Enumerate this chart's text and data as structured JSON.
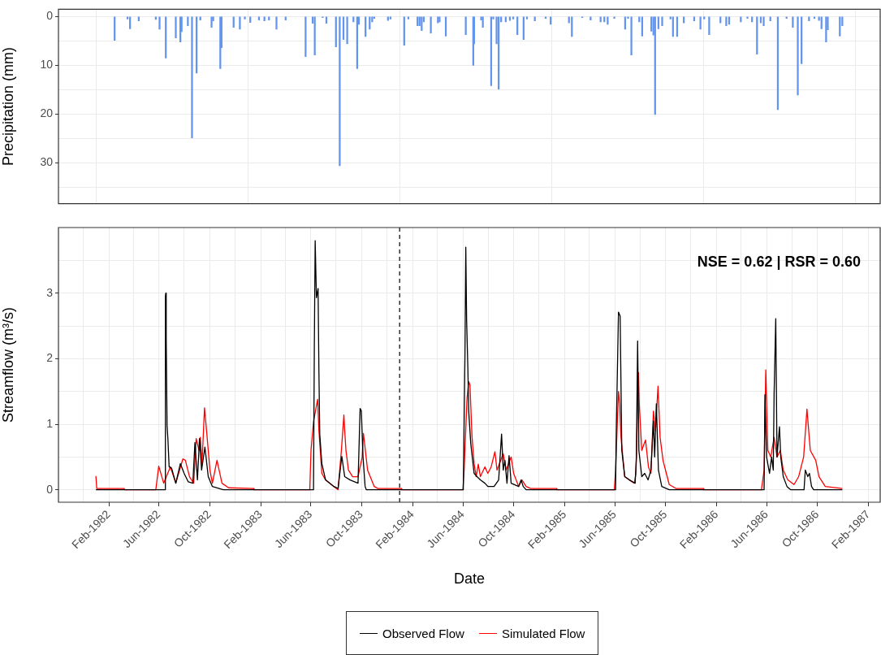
{
  "chart_data": [
    {
      "type": "bar",
      "ylabel": "Precipitation (mm)",
      "color": "#6495ed",
      "grid": true,
      "tick_labels": "y",
      "x": [
        "1982-02-15",
        "1982-03-18",
        "1982-03-24",
        "1982-04-14",
        "1982-05-25",
        "1982-06-03",
        "1982-06-18",
        "1982-07-12",
        "1982-07-23",
        "1982-07-26",
        "1982-08-10",
        "1982-08-20",
        "1982-08-31",
        "1982-09-09",
        "1982-10-06",
        "1982-10-10",
        "1982-10-27",
        "1982-10-30",
        "1982-11-28",
        "1982-12-13",
        "1982-12-25",
        "1983-01-07",
        "1983-01-28",
        "1983-02-10",
        "1983-02-21",
        "1983-03-11",
        "1983-04-02",
        "1983-05-20",
        "1983-06-06",
        "1983-06-11",
        "1983-06-30",
        "1983-07-09",
        "1983-08-01",
        "1983-08-10",
        "1983-08-19",
        "1983-08-28",
        "1983-09-12",
        "1983-09-21",
        "1983-09-25",
        "1983-10-11",
        "1983-10-21",
        "1983-10-27",
        "1983-11-01",
        "1983-12-04",
        "1983-12-10",
        "1984-01-12",
        "1984-01-22",
        "1984-02-13",
        "1984-02-18",
        "1984-02-23",
        "1984-02-28",
        "1984-03-16",
        "1984-04-02",
        "1984-04-06",
        "1984-04-21",
        "1984-06-08",
        "1984-06-26",
        "1984-06-28",
        "1984-07-15",
        "1984-07-19",
        "1984-08-08",
        "1984-08-13",
        "1984-08-21",
        "1984-08-26",
        "1984-09-01",
        "1984-09-12",
        "1984-09-22",
        "1984-09-30",
        "1984-10-10",
        "1984-10-25",
        "1984-11-02",
        "1984-11-21",
        "1984-12-17",
        "1984-12-29",
        "1985-02-11",
        "1985-02-18",
        "1985-03-15",
        "1985-04-04",
        "1985-04-28",
        "1985-05-07",
        "1985-05-15",
        "1985-05-31",
        "1985-06-26",
        "1985-07-03",
        "1985-07-11",
        "1985-07-30",
        "1985-08-06",
        "1985-08-28",
        "1985-09-02",
        "1985-09-06",
        "1985-09-14",
        "1985-09-23",
        "1985-10-13",
        "1985-10-19",
        "1985-10-29",
        "1985-11-14",
        "1985-12-09",
        "1985-12-24",
        "1986-01-02",
        "1986-01-14",
        "1986-02-10",
        "1986-02-24",
        "1986-03-03",
        "1986-03-31",
        "1986-04-16",
        "1986-04-27",
        "1986-05-09",
        "1986-05-18",
        "1986-05-25",
        "1986-06-10",
        "1986-06-28",
        "1986-07-19",
        "1986-08-03",
        "1986-08-15",
        "1986-08-24",
        "1986-09-11",
        "1986-09-24",
        "1986-10-05",
        "1986-10-11",
        "1986-10-22",
        "1986-10-26",
        "1986-11-24",
        "1986-11-30"
      ],
      "values": [
        4.9,
        0.5,
        2.5,
        0.9,
        0.6,
        2.6,
        8.5,
        4.4,
        5.2,
        3.1,
        1.9,
        24.9,
        11.6,
        0.7,
        2.2,
        0.9,
        10.7,
        6.4,
        2.2,
        2.6,
        0.5,
        1.2,
        0.7,
        0.9,
        0.7,
        2.6,
        0.7,
        8.2,
        1.4,
        7.9,
        0.2,
        1.4,
        6.2,
        30.6,
        4.7,
        5.6,
        1.1,
        10.7,
        1.6,
        4.1,
        2.6,
        1.1,
        0.4,
        0.8,
        0.5,
        5.9,
        0.5,
        1.9,
        1.9,
        2.9,
        1.1,
        3.4,
        1.3,
        1.1,
        4.0,
        3.7,
        10.0,
        5.6,
        0.7,
        2.2,
        14.2,
        0.5,
        5.6,
        14.9,
        1.1,
        1.1,
        0.8,
        0.5,
        3.7,
        4.7,
        0.5,
        0.9,
        0.4,
        1.6,
        1.3,
        4.1,
        0.2,
        0.7,
        1.1,
        1.1,
        1.6,
        0.4,
        2.6,
        0.4,
        7.9,
        1.1,
        4.0,
        3.0,
        3.8,
        20.1,
        2.5,
        1.9,
        0.5,
        4.1,
        4.1,
        1.3,
        0.9,
        2.6,
        0.5,
        3.7,
        1.3,
        1.9,
        1.6,
        1.1,
        0.4,
        1.1,
        7.7,
        1.3,
        1.9,
        0.9,
        19.1,
        0.4,
        2.2,
        16.1,
        9.7,
        0.9,
        0.4,
        0.8,
        2.5,
        5.2,
        2.7,
        4.0,
        1.9
      ],
      "xlim": [
        "1981-10-03",
        "1987-03-01"
      ],
      "xticks": [
        {
          "value": "1982-01-01",
          "label": null
        },
        {
          "value": "1983-01-01",
          "label": null
        },
        {
          "value": "1984-01-01",
          "label": null
        },
        {
          "value": "1985-01-01",
          "label": null
        },
        {
          "value": "1986-01-01",
          "label": null
        },
        {
          "value": "1987-01-01",
          "label": null
        }
      ],
      "ylim": [
        38.4,
        -1.5
      ],
      "yticks": [
        0,
        {
          "value": 5,
          "label": null
        },
        10,
        {
          "value": 15,
          "label": null
        },
        20,
        {
          "value": 25,
          "label": null
        },
        30,
        {
          "value": 35,
          "label": null
        }
      ]
    },
    {
      "type": "line",
      "xlabel": "Date",
      "ylabel": "Streamflow (m³/s)",
      "grid": true,
      "legend": "bottom",
      "annotations": [
        "NSE = 0.62 | RSR = 0.60"
      ],
      "ref_lines": [
        {
          "axis": "x",
          "value": "1984-01-01",
          "line_style": "dashed",
          "color": "#000000"
        }
      ],
      "xlim": [
        "1981-10-03",
        "1987-03-01"
      ],
      "xticks": [
        {
          "value": "1981-12-01",
          "label": null
        },
        {
          "value": "1982-02-01",
          "label": "Feb-1982"
        },
        {
          "value": "1982-04-01",
          "label": null
        },
        {
          "value": "1982-06-01",
          "label": "Jun-1982"
        },
        {
          "value": "1982-08-01",
          "label": null
        },
        {
          "value": "1982-10-01",
          "label": "Oct-1982"
        },
        {
          "value": "1982-12-01",
          "label": null
        },
        {
          "value": "1983-02-01",
          "label": "Feb-1983"
        },
        {
          "value": "1983-04-01",
          "label": null
        },
        {
          "value": "1983-06-01",
          "label": "Jun-1983"
        },
        {
          "value": "1983-08-01",
          "label": null
        },
        {
          "value": "1983-10-01",
          "label": "Oct-1983"
        },
        {
          "value": "1983-12-01",
          "label": null
        },
        {
          "value": "1984-02-01",
          "label": "Feb-1984"
        },
        {
          "value": "1984-04-01",
          "label": null
        },
        {
          "value": "1984-06-01",
          "label": "Jun-1984"
        },
        {
          "value": "1984-08-01",
          "label": null
        },
        {
          "value": "1984-10-01",
          "label": "Oct-1984"
        },
        {
          "value": "1984-12-01",
          "label": null
        },
        {
          "value": "1985-02-01",
          "label": "Feb-1985"
        },
        {
          "value": "1985-04-01",
          "label": null
        },
        {
          "value": "1985-06-01",
          "label": "Jun-1985"
        },
        {
          "value": "1985-08-01",
          "label": null
        },
        {
          "value": "1985-10-01",
          "label": "Oct-1985"
        },
        {
          "value": "1985-12-01",
          "label": null
        },
        {
          "value": "1986-02-01",
          "label": "Feb-1986"
        },
        {
          "value": "1986-04-01",
          "label": null
        },
        {
          "value": "1986-06-01",
          "label": "Jun-1986"
        },
        {
          "value": "1986-08-01",
          "label": null
        },
        {
          "value": "1986-10-01",
          "label": "Oct-1986"
        },
        {
          "value": "1986-12-01",
          "label": null
        },
        {
          "value": "1987-02-01",
          "label": "Feb-1987"
        }
      ],
      "ylim": [
        -0.19,
        4.0
      ],
      "yticks": [
        0,
        {
          "value": 0.5,
          "label": null
        },
        1,
        {
          "value": 1.5,
          "label": null
        },
        2,
        {
          "value": 2.5,
          "label": null
        },
        3,
        {
          "value": 3.5,
          "label": null
        }
      ],
      "series": [
        {
          "name": "Observed Flow",
          "color": "#000000",
          "x": [
            "1982-01-01",
            "1982-06-16",
            "1982-06-17",
            "1982-06-18",
            "1982-06-19",
            "1982-06-21",
            "1982-06-23",
            "1982-06-26",
            "1982-07-02",
            "1982-07-12",
            "1982-07-23",
            "1982-08-01",
            "1982-08-11",
            "1982-08-22",
            "1982-08-27",
            "1982-09-02",
            "1982-09-07",
            "1982-09-12",
            "1982-09-20",
            "1982-09-28",
            "1982-10-08",
            "1982-11-03",
            "1983-06-08",
            "1983-06-10",
            "1983-06-12",
            "1983-06-15",
            "1983-06-19",
            "1983-06-21",
            "1983-06-23",
            "1983-06-28",
            "1983-07-07",
            "1983-07-27",
            "1983-08-06",
            "1983-08-15",
            "1983-08-22",
            "1983-09-04",
            "1983-09-23",
            "1983-09-28",
            "1983-10-01",
            "1983-10-05",
            "1983-10-10",
            "1983-10-13",
            "1984-06-02",
            "1984-06-06",
            "1984-06-08",
            "1984-06-10",
            "1984-06-13",
            "1984-06-15",
            "1984-06-20",
            "1984-06-28",
            "1984-07-05",
            "1984-07-13",
            "1984-07-24",
            "1984-07-31",
            "1984-08-15",
            "1984-08-26",
            "1984-09-02",
            "1984-09-06",
            "1984-09-10",
            "1984-09-15",
            "1984-09-20",
            "1984-09-25",
            "1984-10-13",
            "1984-10-19",
            "1984-10-24",
            "1984-10-31",
            "1985-06-03",
            "1985-06-05",
            "1985-06-10",
            "1985-06-14",
            "1985-06-18",
            "1985-06-25",
            "1985-07-06",
            "1985-07-20",
            "1985-07-23",
            "1985-07-26",
            "1985-07-29",
            "1985-08-05",
            "1985-08-12",
            "1985-08-20",
            "1985-08-27",
            "1985-09-02",
            "1985-09-05",
            "1985-09-09",
            "1985-09-14",
            "1985-09-22",
            "1985-10-03",
            "1985-10-10",
            "1986-05-26",
            "1986-05-28",
            "1986-06-01",
            "1986-06-08",
            "1986-06-13",
            "1986-06-17",
            "1986-06-19",
            "1986-06-23",
            "1986-06-26",
            "1986-07-02",
            "1986-07-05",
            "1986-07-11",
            "1986-07-20",
            "1986-07-29",
            "1986-08-30",
            "1986-09-02",
            "1986-09-08",
            "1986-09-12",
            "1986-09-17",
            "1986-09-22",
            "1986-11-30"
          ],
          "values": [
            0,
            0,
            2.95,
            3.0,
            2.3,
            0.98,
            0.78,
            0.35,
            0.33,
            0.1,
            0.4,
            0.25,
            0.12,
            0.1,
            0.72,
            0.15,
            0.78,
            0.3,
            0.65,
            0.2,
            0.05,
            0,
            0,
            2.2,
            3.8,
            2.93,
            3.07,
            1.8,
            0.85,
            0.4,
            0.15,
            0.05,
            0.02,
            0.51,
            0.2,
            0.15,
            0.1,
            1.24,
            1.2,
            0.5,
            0.05,
            0,
            0,
            2.05,
            3.7,
            2.59,
            1.85,
            1.2,
            0.7,
            0.25,
            0.2,
            0.15,
            0.1,
            0.05,
            0.05,
            0.15,
            0.85,
            0.3,
            0.45,
            0.1,
            0.52,
            0.1,
            0.05,
            0.15,
            0.05,
            0,
            0,
            1.0,
            2.71,
            2.65,
            0.6,
            0.2,
            0.15,
            0.1,
            0.5,
            2.27,
            0.6,
            0.2,
            0.25,
            0.15,
            0.3,
            1.05,
            0.5,
            1.31,
            0.3,
            0.05,
            0.02,
            0,
            0,
            1.45,
            0.5,
            0.25,
            0.5,
            0.3,
            1.45,
            2.61,
            0.5,
            0.96,
            0.5,
            0.2,
            0.05,
            0,
            0,
            0.3,
            0.2,
            0.25,
            0.05,
            0,
            0
          ]
        },
        {
          "name": "Simulated Flow",
          "color": "#ff0000",
          "x": [
            "1982-01-01",
            "1982-01-03",
            "1982-03-10",
            "1982-03-11",
            "1982-05-25",
            "1982-06-01",
            "1982-06-13",
            "1982-06-29",
            "1982-07-12",
            "1982-07-29",
            "1982-08-04",
            "1982-08-14",
            "1982-08-24",
            "1982-08-30",
            "1982-09-06",
            "1982-09-09",
            "1982-09-13",
            "1982-09-19",
            "1982-09-24",
            "1982-10-02",
            "1982-10-08",
            "1982-10-19",
            "1982-10-31",
            "1982-11-16",
            "1983-01-15",
            "1983-01-16",
            "1983-05-30",
            "1983-06-02",
            "1983-06-08",
            "1983-06-18",
            "1983-06-21",
            "1983-06-28",
            "1983-07-07",
            "1983-07-27",
            "1983-08-06",
            "1983-08-14",
            "1983-08-20",
            "1983-08-22",
            "1983-08-25",
            "1983-08-31",
            "1983-09-10",
            "1983-09-23",
            "1983-10-03",
            "1983-10-06",
            "1983-10-16",
            "1983-11-01",
            "1983-11-10",
            "1984-01-05",
            "1984-01-06",
            "1984-06-01",
            "1984-06-04",
            "1984-06-11",
            "1984-06-15",
            "1984-06-18",
            "1984-06-23",
            "1984-06-28",
            "1984-07-03",
            "1984-07-08",
            "1984-07-13",
            "1984-07-24",
            "1984-07-31",
            "1984-08-08",
            "1984-08-17",
            "1984-08-22",
            "1984-09-06",
            "1984-09-13",
            "1984-09-25",
            "1984-10-01",
            "1984-10-13",
            "1984-10-21",
            "1984-10-31",
            "1984-11-11",
            "1985-01-12",
            "1985-01-13",
            "1985-05-31",
            "1985-06-03",
            "1985-06-10",
            "1985-06-13",
            "1985-06-16",
            "1985-06-25",
            "1985-07-18",
            "1985-07-22",
            "1985-07-28",
            "1985-07-30",
            "1985-08-05",
            "1985-08-14",
            "1985-08-21",
            "1985-08-27",
            "1985-09-02",
            "1985-09-07",
            "1985-09-13",
            "1985-09-18",
            "1985-09-25",
            "1985-10-03",
            "1985-10-10",
            "1985-10-26",
            "1985-12-31",
            "1986-01-01",
            "1986-05-19",
            "1986-05-20",
            "1986-05-26",
            "1986-05-30",
            "1986-06-04",
            "1986-06-11",
            "1986-06-19",
            "1986-06-26",
            "1986-07-04",
            "1986-07-11",
            "1986-07-22",
            "1986-08-06",
            "1986-08-17",
            "1986-08-29",
            "1986-09-06",
            "1986-09-14",
            "1986-09-27",
            "1986-10-05",
            "1986-10-20",
            "1986-11-30"
          ],
          "values": [
            0.21,
            0.02,
            0.02,
            0,
            0,
            0.36,
            0.1,
            0.35,
            0.1,
            0.47,
            0.45,
            0.2,
            0.1,
            0.78,
            0.6,
            0.8,
            0.4,
            1.25,
            0.9,
            0.3,
            0.1,
            0.45,
            0.1,
            0.03,
            0.02,
            0,
            0,
            0.6,
            1.04,
            1.38,
            0.9,
            0.25,
            0.15,
            0.05,
            0,
            0.6,
            1.14,
            0.9,
            0.6,
            0.3,
            0.2,
            0.2,
            0.5,
            0.86,
            0.3,
            0.05,
            0.02,
            0.02,
            0,
            0,
            0.3,
            1.4,
            1.65,
            1.6,
            0.8,
            0.4,
            0.2,
            0.39,
            0.2,
            0.35,
            0.25,
            0.35,
            0.58,
            0.3,
            0.55,
            0.3,
            0.5,
            0.25,
            0.05,
            0.15,
            0.05,
            0.02,
            0.02,
            0,
            0,
            0.3,
            1.5,
            1.3,
            0.8,
            0.2,
            0.1,
            0.25,
            1.79,
            1.3,
            0.6,
            0.76,
            0.35,
            0.25,
            1.2,
            0.9,
            1.58,
            0.8,
            0.45,
            0.25,
            0.08,
            0.02,
            0.02,
            0,
            0,
            0.02,
            0.3,
            1.83,
            0.6,
            0.5,
            0.8,
            0.5,
            0.6,
            0.3,
            0.15,
            0.08,
            0.2,
            0.5,
            1.23,
            0.6,
            0.45,
            0.2,
            0.05,
            0.02
          ]
        }
      ]
    }
  ]
}
